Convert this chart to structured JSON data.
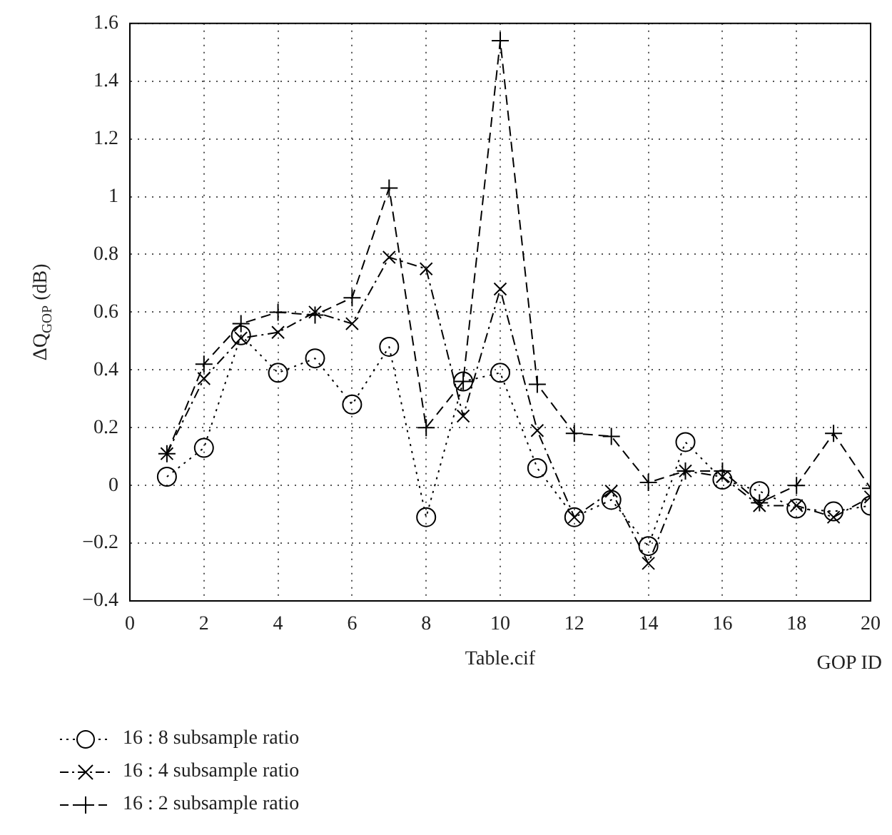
{
  "chart_data": {
    "type": "line",
    "xlabel": "GOP ID",
    "ylabel": "ΔQ$_{GOP}$ (dB)",
    "annotations": [
      "Table.cif"
    ],
    "x": [
      1,
      2,
      3,
      4,
      5,
      6,
      7,
      8,
      9,
      10,
      11,
      12,
      13,
      14,
      15,
      16,
      17,
      18,
      19,
      20
    ],
    "xlim": [
      0,
      20
    ],
    "xticks": [
      0,
      2,
      4,
      6,
      8,
      10,
      12,
      14,
      16,
      18,
      20
    ],
    "ylim": [
      -0.4,
      1.6
    ],
    "yticks": [
      {
        "value": -0.4,
        "label": "−0.4"
      },
      {
        "value": -0.2,
        "label": "−0.2"
      },
      0,
      0.2,
      0.4,
      0.6,
      0.8,
      1,
      1.2,
      1.4,
      1.6
    ],
    "grid": true,
    "legend": "bottom left",
    "series": [
      {
        "name": "16 : 8 subsample ratio",
        "color": "#000000",
        "marker": "circle",
        "line_style": "dotted",
        "values": [
          0.03,
          0.13,
          0.52,
          0.39,
          0.44,
          0.28,
          0.48,
          -0.11,
          0.36,
          0.39,
          0.06,
          -0.11,
          -0.05,
          -0.21,
          0.15,
          0.02,
          -0.02,
          -0.08,
          -0.09,
          -0.07
        ]
      },
      {
        "name": "16 : 4 subsample ratio",
        "color": "#000000",
        "marker": "cross",
        "line_style": "dashdot",
        "values": [
          0.11,
          0.37,
          0.51,
          0.53,
          0.6,
          0.56,
          0.79,
          0.75,
          0.24,
          0.68,
          0.19,
          -0.11,
          -0.02,
          -0.27,
          0.05,
          0.03,
          -0.07,
          -0.07,
          -0.11,
          -0.04
        ]
      },
      {
        "name": "16 : 2 subsample ratio",
        "color": "#000000",
        "marker": "plus",
        "line_style": "dashed",
        "values": [
          0.11,
          0.42,
          0.56,
          0.6,
          0.59,
          0.65,
          1.03,
          0.2,
          0.36,
          1.54,
          0.35,
          0.18,
          0.17,
          0.01,
          0.05,
          0.05,
          -0.06,
          0,
          0.18,
          -0.01
        ]
      }
    ]
  }
}
